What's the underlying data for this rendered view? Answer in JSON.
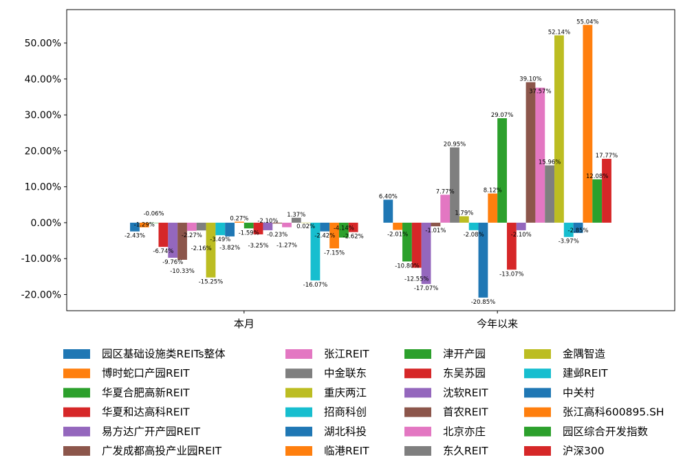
{
  "chart_data": {
    "type": "bar",
    "title": "",
    "xlabel": "",
    "ylabel": "",
    "categories": [
      "本月",
      "今年以来"
    ],
    "ylim": [
      -24.5,
      59.3
    ],
    "xlim": [
      -0.7,
      1.7
    ],
    "yticks": [
      -20,
      -10,
      0,
      10,
      20,
      30,
      40,
      50
    ],
    "ytick_labels": [
      "-20.00%",
      "-10.00%",
      "0.00%",
      "10.00%",
      "20.00%",
      "30.00%",
      "40.00%",
      "50.00%"
    ],
    "grid": false,
    "legend_placement": "bottom",
    "legend_columns": 4,
    "series": [
      {
        "name": "园区基础设施类REITs整体",
        "color": "#1f77b4",
        "values": [
          -2.43,
          6.4
        ]
      },
      {
        "name": "博时蛇口产园REIT",
        "color": "#ff7f0e",
        "values": [
          -1.29,
          -2.01
        ]
      },
      {
        "name": "华夏合肥高新REIT",
        "color": "#2ca02c",
        "values": [
          -0.06,
          -10.8
        ]
      },
      {
        "name": "华夏和达高科REIT",
        "color": "#d62728",
        "values": [
          -6.74,
          -12.55
        ]
      },
      {
        "name": "易方达广开产园REIT",
        "color": "#9467bd",
        "values": [
          -9.76,
          -17.07
        ]
      },
      {
        "name": "广发成都高投产业园REIT",
        "color": "#8c564b",
        "values": [
          -10.33,
          -1.01
        ]
      },
      {
        "name": "张江REIT",
        "color": "#e377c2",
        "values": [
          -2.27,
          7.77
        ]
      },
      {
        "name": "中金联东",
        "color": "#7f7f7f",
        "values": [
          -2.16,
          20.95
        ]
      },
      {
        "name": "重庆两江",
        "color": "#bcbd22",
        "values": [
          -15.25,
          1.79
        ]
      },
      {
        "name": "招商科创",
        "color": "#17becf",
        "values": [
          -3.49,
          -2.08
        ]
      },
      {
        "name": "湖北科投",
        "color": "#1f77b4",
        "values": [
          -3.82,
          -20.85
        ]
      },
      {
        "name": "临港REIT",
        "color": "#ff7f0e",
        "values": [
          0.27,
          8.12
        ]
      },
      {
        "name": "津开产园",
        "color": "#2ca02c",
        "values": [
          -1.59,
          29.07
        ]
      },
      {
        "name": "东吴苏园",
        "color": "#d62728",
        "values": [
          -3.25,
          -13.07
        ]
      },
      {
        "name": "沈软REIT",
        "color": "#9467bd",
        "values": [
          -2.1,
          -2.1
        ]
      },
      {
        "name": "首农REIT",
        "color": "#8c564b",
        "values": [
          -0.23,
          39.1
        ]
      },
      {
        "name": "北京亦庄",
        "color": "#e377c2",
        "values": [
          -1.27,
          37.57
        ]
      },
      {
        "name": "东久REIT",
        "color": "#7f7f7f",
        "values": [
          1.37,
          15.96
        ]
      },
      {
        "name": "金隅智造",
        "color": "#bcbd22",
        "values": [
          0.02,
          52.14
        ]
      },
      {
        "name": "建邺REIT",
        "color": "#17becf",
        "values": [
          -16.07,
          -3.97
        ]
      },
      {
        "name": "中关村",
        "color": "#1f77b4",
        "values": [
          -2.42,
          -2.85
        ]
      },
      {
        "name": "张江高科600895.SH",
        "color": "#ff7f0e",
        "values": [
          -7.15,
          55.04
        ]
      },
      {
        "name": "园区综合开发指数",
        "color": "#2ca02c",
        "values": [
          -4.14,
          12.08
        ]
      },
      {
        "name": "沪深300",
        "color": "#d62728",
        "values": [
          -2.62,
          17.77
        ]
      }
    ]
  }
}
